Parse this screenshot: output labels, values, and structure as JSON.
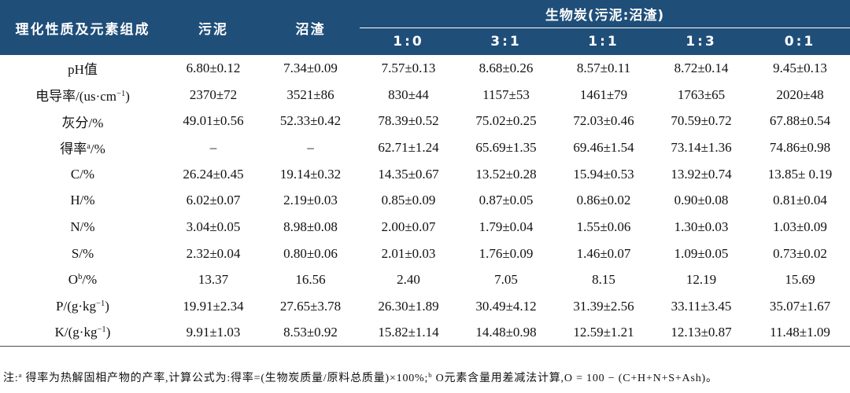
{
  "table": {
    "header": {
      "property_label": "理化性质及元素组成",
      "sludge_label": "污泥",
      "digestate_label": "沼渣",
      "biochar_group_label": "生物炭(污泥:沼渣)",
      "ratios": [
        "1:0",
        "3:1",
        "1:1",
        "1:3",
        "0:1"
      ]
    },
    "rows": [
      {
        "label": "pH值",
        "values": [
          "6.80±0.12",
          "7.34±0.09",
          "7.57±0.13",
          "8.68±0.26",
          "8.57±0.11",
          "8.72±0.14",
          "9.45±0.13"
        ]
      },
      {
        "label": "电导率/(us·cm",
        "label_sup": "−1",
        "label_tail": ")",
        "values": [
          "2370±72",
          "3521±86",
          "830±44",
          "1157±53",
          "1461±79",
          "1763±65",
          "2020±48"
        ]
      },
      {
        "label": "灰分/%",
        "values": [
          "49.01±0.56",
          "52.33±0.42",
          "78.39±0.52",
          "75.02±0.25",
          "72.03±0.46",
          "70.59±0.72",
          "67.88±0.54"
        ]
      },
      {
        "label": "得率",
        "label_sup": "a",
        "label_tail": "/%",
        "values": [
          "–",
          "–",
          "62.71±1.24",
          "65.69±1.35",
          "69.46±1.54",
          "73.14±1.36",
          "74.86±0.98"
        ]
      },
      {
        "label": "C/%",
        "values": [
          "26.24±0.45",
          "19.14±0.32",
          "14.35±0.67",
          "13.52±0.28",
          "15.94±0.53",
          "13.92±0.74",
          "13.85± 0.19"
        ]
      },
      {
        "label": "H/%",
        "values": [
          "6.02±0.07",
          "2.19±0.03",
          "0.85±0.09",
          "0.87±0.05",
          "0.86±0.02",
          "0.90±0.08",
          "0.81±0.04"
        ]
      },
      {
        "label": "N/%",
        "values": [
          "3.04±0.05",
          "8.98±0.08",
          "2.00±0.07",
          "1.79±0.04",
          "1.55±0.06",
          "1.30±0.03",
          "1.03±0.09"
        ]
      },
      {
        "label": "S/%",
        "values": [
          "2.32±0.04",
          "0.80±0.06",
          "2.01±0.03",
          "1.76±0.09",
          "1.46±0.07",
          "1.09±0.05",
          "0.73±0.02"
        ]
      },
      {
        "label": "O",
        "label_sup": "b",
        "label_tail": "/%",
        "values": [
          "13.37",
          "16.56",
          "2.40",
          "7.05",
          "8.15",
          "12.19",
          "15.69"
        ]
      },
      {
        "label": "P/(g·kg",
        "label_sup": "−1",
        "label_tail": ")",
        "values": [
          "19.91±2.34",
          "27.65±3.78",
          "26.30±1.89",
          "30.49±4.12",
          "31.39±2.56",
          "33.11±3.45",
          "35.07±1.67"
        ]
      },
      {
        "label": "K/(g·kg",
        "label_sup": "−1",
        "label_tail": ")",
        "values": [
          "9.91±1.03",
          "8.53±0.92",
          "15.82±1.14",
          "14.48±0.98",
          "12.59±1.21",
          "12.13±0.87",
          "11.48±1.09"
        ]
      }
    ]
  },
  "footnote": {
    "prefix": "注:",
    "sup_a": "a",
    "note_a": " 得率为热解固相产物的产率,计算公式为:得率=(生物炭质量/原料总质量)×100%;",
    "sup_b": "b",
    "note_b": " O元素含量用差减法计算,O = 100 − (C+H+N+S+Ash)。"
  },
  "colors": {
    "header_bg": "#1f4e79",
    "header_text": "#ffffff",
    "body_text": "#111111",
    "bottom_rule": "#4d4d4d"
  }
}
